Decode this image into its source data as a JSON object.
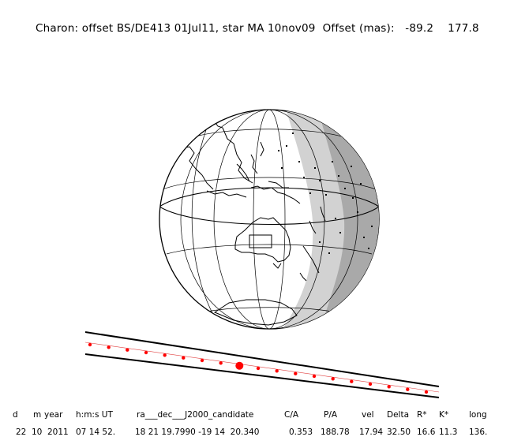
{
  "header": {
    "title": "Charon: offset BS/DE413 01Jul11, star MA 10nov09",
    "offset_label": "Offset (mas):",
    "offset_x": "-89.2",
    "offset_y": "177.8"
  },
  "map": {
    "centre_view": "Australia and Western Pacific",
    "colors": {
      "land_outline": "#000000",
      "night_shade_light": "#d0d0d0",
      "night_shade_dark": "#a8a8a8",
      "shadow_path_line": "#000000",
      "track_points": "#ff0000"
    },
    "track_point_count": 19,
    "closest_approach_marker": "large red dot"
  },
  "table": {
    "headers": [
      "d",
      "m",
      "year",
      "h:m:s UT",
      "ra___dec___J2000_candidate",
      "C/A",
      "P/A",
      "vel",
      "Delta",
      "R*",
      "K*",
      "long"
    ],
    "values": [
      "22",
      "10",
      "2011",
      "07 14 52.",
      "18 21 19.7990 -19 14  20.340",
      "0.353",
      "188.78",
      "17.94",
      "32.50",
      "16.6",
      "11.3",
      "136."
    ]
  }
}
